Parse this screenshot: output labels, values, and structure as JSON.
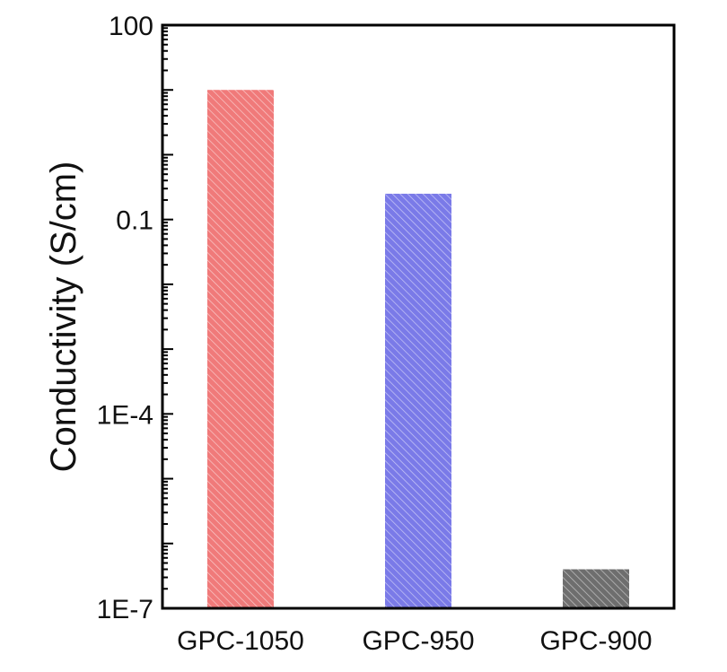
{
  "chart_data": {
    "type": "bar",
    "title": "",
    "xlabel": "",
    "ylabel": "Conductivity (S/cm)",
    "yscale": "log",
    "ylim": [
      1e-07,
      100
    ],
    "yticks": [
      {
        "value": 100,
        "label": "100"
      },
      {
        "value": 0.1,
        "label": "0.1"
      },
      {
        "value": 0.0001,
        "label": "1E-4"
      },
      {
        "value": 1e-07,
        "label": "1E-7"
      }
    ],
    "categories": [
      "GPC-1050",
      "GPC-950",
      "GPC-900"
    ],
    "values": [
      10,
      0.25,
      4e-07
    ],
    "bar_colors": [
      "#f07a7a",
      "#7a7ae8",
      "#6e6e6e"
    ],
    "bar_pattern": "diagonal-hatch",
    "legend": "none",
    "grid": false
  }
}
